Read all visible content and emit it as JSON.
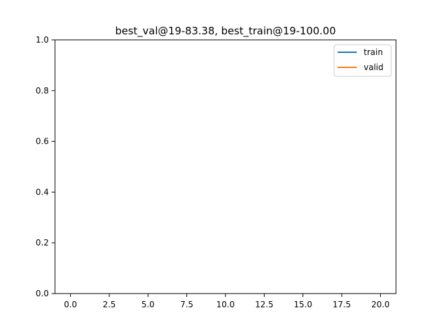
{
  "chart_data": {
    "type": "line",
    "title": "best_val@19-83.38, best_train@19-100.00",
    "xlabel": "",
    "ylabel": "",
    "xlim": [
      -1,
      21
    ],
    "ylim": [
      0.0,
      1.0
    ],
    "x_ticks": [
      0,
      2.5,
      5,
      7.5,
      10,
      12.5,
      15,
      17.5,
      20
    ],
    "x_tick_labels": [
      "0.0",
      "2.5",
      "5.0",
      "7.5",
      "10.0",
      "12.5",
      "15.0",
      "17.5",
      "20.0"
    ],
    "y_ticks": [
      0,
      0.2,
      0.4,
      0.6,
      0.8,
      1.0
    ],
    "y_tick_labels": [
      "0.0",
      "0.2",
      "0.4",
      "0.6",
      "0.8",
      "1.0"
    ],
    "grid": false,
    "legend_position": "top-right",
    "series": [
      {
        "name": "train",
        "color": "#1f77b4",
        "x": [],
        "y": []
      },
      {
        "name": "valid",
        "color": "#ff7f0e",
        "x": [],
        "y": []
      }
    ]
  }
}
